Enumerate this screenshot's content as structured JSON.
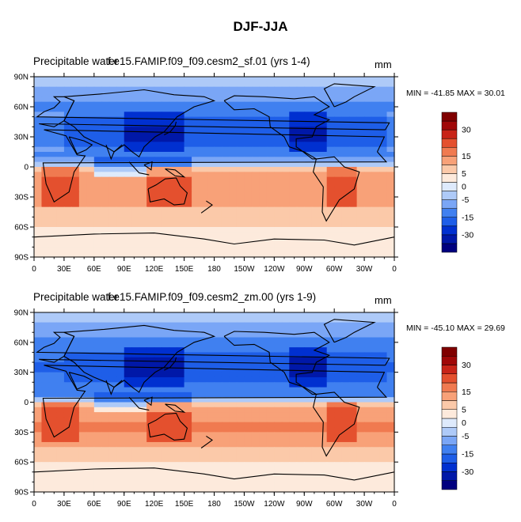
{
  "title": "DJF-JJA",
  "colors": {
    "levels": [
      "#00007f",
      "#0018a8",
      "#0030d0",
      "#1e5ee8",
      "#4080f0",
      "#7aa6f6",
      "#aecaf8",
      "#deeafc",
      "#fdeadc",
      "#fbc9a9",
      "#f8a178",
      "#f07a50",
      "#e4502e",
      "#c82418",
      "#a00808",
      "#800000"
    ]
  },
  "colorbar": {
    "labels": [
      "30",
      "15",
      "5",
      "0",
      "-5",
      "-15",
      "-30"
    ]
  },
  "chart_data": [
    {
      "type": "heatmap",
      "variable_label": "Precipitable water",
      "case_label": "f.e15.FAMIP.f09_f09.cesm2_sf.01 (yrs 1-4)",
      "units": "mm",
      "min_max": "MIN = -41.85 MAX =  30.01",
      "x_ticks": [
        "0",
        "30E",
        "60E",
        "90E",
        "120E",
        "150E",
        "180",
        "150W",
        "120W",
        "90W",
        "60W",
        "30W",
        "0"
      ],
      "y_ticks": [
        "90N",
        "60N",
        "30N",
        "0",
        "30S",
        "60S",
        "90S"
      ],
      "xlim": [
        0,
        360
      ],
      "ylim": [
        -90,
        90
      ],
      "levels": [
        -30,
        -25,
        -20,
        -15,
        -10,
        -5,
        -2,
        0,
        2,
        5,
        10,
        15,
        20,
        25,
        30
      ],
      "zonal_profile": {
        "lat": [
          90,
          75,
          60,
          45,
          35,
          25,
          15,
          5,
          0,
          -5,
          -15,
          -25,
          -35,
          -45,
          -60,
          -75,
          -90
        ],
        "value": [
          -3,
          -6,
          -11,
          -16,
          -19,
          -17,
          -13,
          -9,
          0,
          5,
          8,
          10,
          7,
          4,
          2,
          1,
          1
        ]
      }
    },
    {
      "type": "heatmap",
      "variable_label": "Precipitable water",
      "case_label": "f.e15.FAMIP.f09_f09.cesm2_zm.00 (yrs 1-9)",
      "units": "mm",
      "min_max": "MIN = -45.10 MAX =  29.69",
      "x_ticks": [
        "0",
        "30E",
        "60E",
        "90E",
        "120E",
        "150E",
        "180",
        "150W",
        "120W",
        "90W",
        "60W",
        "30W",
        "0"
      ],
      "y_ticks": [
        "90N",
        "60N",
        "30N",
        "0",
        "30S",
        "60S",
        "90S"
      ],
      "xlim": [
        0,
        360
      ],
      "ylim": [
        -90,
        90
      ],
      "levels": [
        -30,
        -25,
        -20,
        -15,
        -10,
        -5,
        -2,
        0,
        2,
        5,
        10,
        15,
        20,
        25,
        30
      ],
      "zonal_profile": {
        "lat": [
          90,
          75,
          60,
          45,
          35,
          25,
          15,
          5,
          0,
          -5,
          -15,
          -25,
          -35,
          -45,
          -60,
          -75,
          -90
        ],
        "value": [
          -3,
          -7,
          -12,
          -17,
          -20,
          -18,
          -14,
          -9,
          0,
          5,
          9,
          11,
          8,
          5,
          2,
          1,
          1
        ]
      }
    }
  ]
}
